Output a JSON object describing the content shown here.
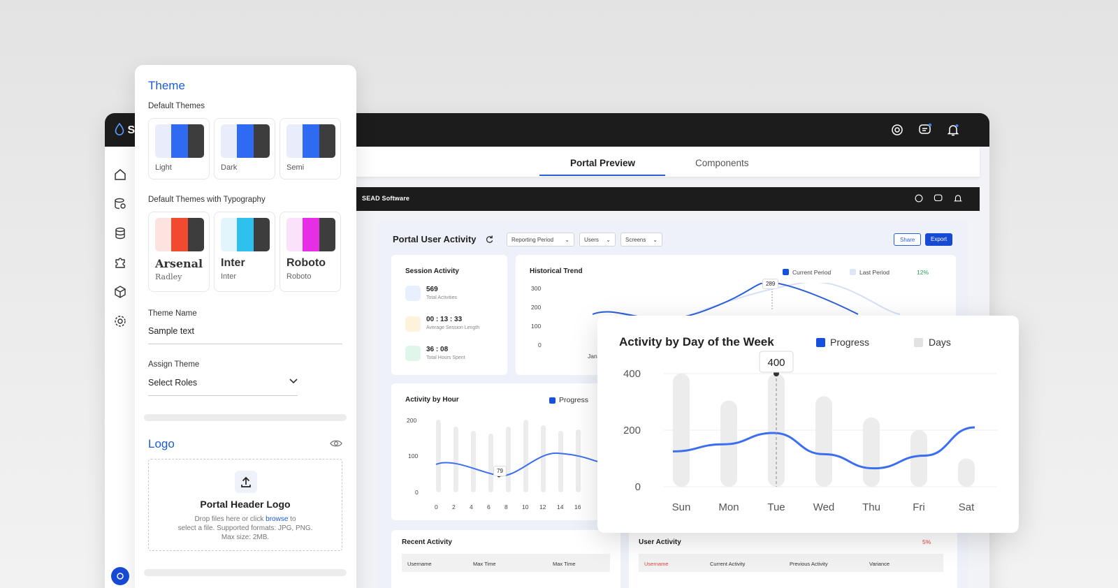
{
  "app": {
    "brand_initial": "S",
    "tabs": [
      {
        "label": "Portal Preview",
        "active": true
      },
      {
        "label": "Components",
        "active": false
      }
    ],
    "inner_brand": "SEAD Software"
  },
  "dashboard": {
    "title": "Portal User Activity",
    "filters": [
      "Reporting Period",
      "Users",
      "Screens"
    ],
    "share_label": "Share",
    "export_label": "Export",
    "session": {
      "title": "Session Activity",
      "metrics": [
        {
          "value": "569",
          "label": "Total Activities"
        },
        {
          "value": "00 : 13 : 33",
          "label": "Average Session Length"
        },
        {
          "value": "36 : 08",
          "label": "Total Hours Spent"
        }
      ]
    },
    "historical": {
      "title": "Historical Trend",
      "legend_current": "Current Period",
      "legend_last": "Last Period",
      "change": "12%",
      "yticks": [
        "300",
        "200",
        "100",
        "0"
      ],
      "peak_label": "289",
      "x_first": "Jan"
    },
    "hourly": {
      "title": "Activity by Hour",
      "legend": "Progress",
      "yticks": [
        "200",
        "100",
        "0"
      ],
      "xticks": [
        "0",
        "2",
        "4",
        "6",
        "8",
        "10",
        "12",
        "14",
        "16"
      ],
      "tooltip": "79"
    },
    "recent": {
      "title": "Recent Activity",
      "columns": [
        "Username",
        "Max Time",
        "Max Time"
      ]
    },
    "user_activity": {
      "title": "User Activity",
      "change": "5%",
      "columns": [
        "Username",
        "Current Activity",
        "Previous Activity",
        "Variance"
      ]
    }
  },
  "theme_panel": {
    "title": "Theme",
    "default_themes_label": "Default Themes",
    "default_themes": [
      {
        "label": "Light",
        "colors": [
          "#e8ecfb",
          "#2f6bf2",
          "#3d3d3d"
        ]
      },
      {
        "label": "Dark",
        "colors": [
          "#e8ecfb",
          "#2f6bf2",
          "#3d3d3d"
        ]
      },
      {
        "label": "Semi",
        "colors": [
          "#e8ecfb",
          "#2f6bf2",
          "#3d3d3d"
        ]
      }
    ],
    "typography_label": "Default Themes with Typography",
    "typography_themes": [
      {
        "font": "Arsenal",
        "secondary": "Radley",
        "colors": [
          "#fde3e0",
          "#f24a2f",
          "#3d3d3d"
        ]
      },
      {
        "font": "Inter",
        "secondary": "Inter",
        "colors": [
          "#e3f5fc",
          "#2ec1ee",
          "#3d3d3d"
        ]
      },
      {
        "font": "Roboto",
        "secondary": "Roboto",
        "colors": [
          "#fbe2fb",
          "#e72ee7",
          "#3d3d3d"
        ]
      }
    ],
    "theme_name_label": "Theme Name",
    "theme_name_value": "Sample text",
    "assign_label": "Assign Theme",
    "assign_value": "Select Roles",
    "logo_title": "Logo",
    "upload_title": "Portal Header Logo",
    "upload_line1_before": "Drop files here or click ",
    "upload_link": "browse",
    "upload_line1_after": " to",
    "upload_line2": "select a file. Supported formats: JPG, PNG.",
    "upload_line3": "Max size: 2MB."
  },
  "chart_data": {
    "type": "bar",
    "title": "Activity by Day of the Week",
    "categories": [
      "Sun",
      "Mon",
      "Tue",
      "Wed",
      "Thu",
      "Fri",
      "Sat"
    ],
    "series": [
      {
        "name": "Days",
        "values": [
          400,
          305,
          400,
          320,
          245,
          200,
          100
        ],
        "color": "#ececec"
      },
      {
        "name": "Progress",
        "values": [
          125,
          150,
          190,
          115,
          65,
          110,
          210
        ],
        "color": "#3b6ef0",
        "style": "line"
      }
    ],
    "yticks": [
      "400",
      "200",
      "0"
    ],
    "ylim": [
      0,
      400
    ],
    "tooltip": {
      "category": "Tue",
      "value": "400"
    },
    "legend": [
      "Progress",
      "Days"
    ],
    "legend_colors": [
      "#1650e0",
      "#e2e2e2"
    ]
  }
}
